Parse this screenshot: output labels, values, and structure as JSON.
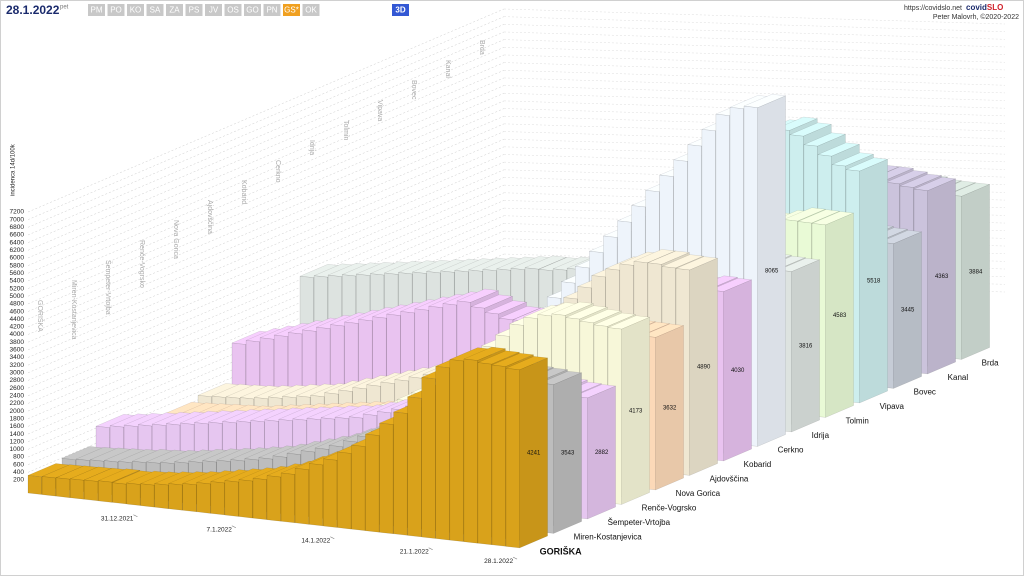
{
  "header": {
    "date": "28.1.2022",
    "weekday": "pet",
    "buttons": [
      "PM",
      "PO",
      "KO",
      "SA",
      "ZA",
      "PS",
      "JV",
      "OS",
      "GO",
      "PN",
      "GS*",
      "OK"
    ],
    "active_button": "GS*",
    "mode": "3D",
    "site": "https://covidslo.net",
    "brand_a": "covid",
    "brand_b": "SLO",
    "author": "Peter Malovrh, ©2020-2022"
  },
  "chart_data": {
    "type": "bar3d",
    "ylabel": "incidenca 14d/100k",
    "ylim": [
      0,
      7200
    ],
    "yticks": [
      200,
      400,
      600,
      800,
      1000,
      1200,
      1400,
      1600,
      1800,
      2000,
      2200,
      2400,
      2600,
      2800,
      3000,
      3200,
      3400,
      3600,
      3800,
      4000,
      4200,
      4400,
      4600,
      4800,
      5000,
      5200,
      5400,
      5600,
      5800,
      6000,
      6200,
      6400,
      6600,
      6800,
      7000,
      7200
    ],
    "grid": true,
    "categories": [
      null,
      null,
      null,
      null,
      null,
      null,
      null,
      "31.12.2021",
      null,
      null,
      null,
      null,
      null,
      null,
      "7.1.2022",
      null,
      null,
      null,
      null,
      null,
      null,
      "14.1.2022",
      null,
      null,
      null,
      null,
      null,
      null,
      "21.1.2022",
      null,
      null,
      null,
      null,
      null,
      "28.1.2022"
    ],
    "series": [
      {
        "name": "GORIŠKA",
        "color": "#d9a21b",
        "values": [
          420,
          430,
          440,
          450,
          460,
          480,
          470,
          500,
          520,
          560,
          600,
          640,
          700,
          760,
          820,
          880,
          950,
          1050,
          1150,
          1300,
          1450,
          1600,
          1800,
          2000,
          2300,
          2600,
          2900,
          3300,
          3800,
          4100,
          4300,
          4350,
          4300,
          4280,
          4241
        ]
      },
      {
        "name": "Miren-Kostanjevica",
        "color": "#bdbdbd",
        "values": [
          480,
          500,
          520,
          540,
          560,
          600,
          620,
          650,
          700,
          750,
          800,
          850,
          900,
          960,
          1020,
          1100,
          1200,
          1300,
          1400,
          1500,
          1650,
          1800,
          1950,
          2100,
          2300,
          2500,
          2700,
          2900,
          3100,
          3300,
          3450,
          3550,
          3600,
          3580,
          3543
        ]
      },
      {
        "name": "Šempeter-Vrtojba",
        "color": "#e6c6f0",
        "values": [
          900,
          950,
          1000,
          1050,
          1100,
          1150,
          1200,
          1250,
          1300,
          1350,
          1400,
          1450,
          1500,
          1550,
          1600,
          1650,
          1700,
          1750,
          1800,
          1900,
          2000,
          2100,
          2200,
          2300,
          2400,
          2500,
          2600,
          2700,
          2800,
          2900,
          2950,
          3000,
          2950,
          2900,
          2882
        ]
      },
      {
        "name": "Renče-Vogrsko",
        "color": "#f7f7d9",
        "values": [
          300,
          300,
          350,
          350,
          400,
          450,
          500,
          550,
          600,
          700,
          800,
          900,
          1000,
          1100,
          1200,
          1300,
          1400,
          1500,
          1700,
          1900,
          2100,
          2300,
          2500,
          2800,
          3100,
          3400,
          3700,
          4000,
          4200,
          4300,
          4350,
          4300,
          4250,
          4200,
          4173
        ]
      },
      {
        "name": "Nova Gorica",
        "color": "#fcd9b8",
        "values": [
          500,
          520,
          540,
          560,
          580,
          600,
          650,
          700,
          750,
          800,
          850,
          900,
          950,
          1000,
          1050,
          1100,
          1200,
          1300,
          1400,
          1500,
          1600,
          1700,
          1900,
          2100,
          2300,
          2500,
          2700,
          2900,
          3100,
          3300,
          3500,
          3600,
          3650,
          3640,
          3632
        ]
      },
      {
        "name": "Ajdovščina",
        "color": "#efe7d2",
        "values": [
          600,
          620,
          640,
          660,
          700,
          750,
          800,
          850,
          900,
          1000,
          1100,
          1200,
          1300,
          1400,
          1500,
          1600,
          1700,
          1800,
          2000,
          2200,
          2400,
          2600,
          2800,
          3000,
          3300,
          3600,
          3900,
          4200,
          4500,
          4700,
          4850,
          4950,
          4950,
          4900,
          4890
        ]
      },
      {
        "name": "Kobarid",
        "color": "#e9c3f0",
        "values": [
          1500,
          1600,
          1700,
          1800,
          1900,
          2000,
          2100,
          2200,
          2300,
          2400,
          2500,
          2600,
          2700,
          2800,
          2900,
          3000,
          3100,
          3000,
          2900,
          2800,
          2800,
          2900,
          3000,
          3100,
          3200,
          3300,
          3400,
          3500,
          3600,
          3700,
          3800,
          3900,
          4000,
          4050,
          4030
        ]
      },
      {
        "name": "Cerkno",
        "color": "#eef4fb",
        "values": [
          400,
          400,
          450,
          500,
          500,
          550,
          600,
          650,
          700,
          800,
          900,
          1000,
          1100,
          1200,
          1400,
          1600,
          1800,
          2000,
          2300,
          2600,
          3000,
          3400,
          3800,
          4200,
          4600,
          5000,
          5400,
          5800,
          6200,
          6600,
          7000,
          7400,
          7800,
          8000,
          8065
        ]
      },
      {
        "name": "Idrija",
        "color": "#dde3e0",
        "values": [
          2400,
          2450,
          2500,
          2550,
          2600,
          2650,
          2700,
          2750,
          2800,
          2850,
          2900,
          2950,
          3000,
          3050,
          3100,
          3150,
          3200,
          3200,
          3250,
          3300,
          3300,
          3350,
          3400,
          3450,
          3500,
          3500,
          3550,
          3600,
          3650,
          3700,
          3750,
          3800,
          3850,
          3830,
          3816
        ]
      },
      {
        "name": "Tolmin",
        "color": "#e9fad6",
        "values": [
          600,
          650,
          700,
          750,
          800,
          850,
          900,
          950,
          1000,
          1100,
          1200,
          1300,
          1400,
          1500,
          1600,
          1700,
          1800,
          1900,
          2000,
          2200,
          2400,
          2600,
          2800,
          3000,
          3200,
          3400,
          3600,
          3800,
          4000,
          4200,
          4400,
          4500,
          4600,
          4590,
          4583
        ]
      },
      {
        "name": "Vipava",
        "color": "#cdeeee",
        "values": [
          800,
          850,
          900,
          950,
          1000,
          1100,
          1200,
          1300,
          1400,
          1500,
          1600,
          1800,
          2000,
          2200,
          2400,
          2600,
          2800,
          3000,
          3300,
          3600,
          3900,
          4200,
          4500,
          4800,
          5100,
          5400,
          5700,
          6000,
          6200,
          6300,
          6200,
          6000,
          5800,
          5600,
          5518
        ]
      },
      {
        "name": "Bovec",
        "color": "#c6ccd6",
        "values": [
          300,
          300,
          350,
          350,
          400,
          400,
          450,
          500,
          550,
          600,
          700,
          800,
          900,
          1000,
          1100,
          1200,
          1300,
          1400,
          1600,
          1800,
          2000,
          2200,
          2400,
          2600,
          2800,
          3000,
          3200,
          3400,
          3600,
          3700,
          3650,
          3600,
          3500,
          3470,
          3445
        ]
      },
      {
        "name": "Kanal",
        "color": "#cbc3dc",
        "values": [
          500,
          550,
          600,
          650,
          700,
          750,
          800,
          850,
          900,
          1000,
          1100,
          1200,
          1300,
          1400,
          1500,
          1600,
          1800,
          2000,
          2200,
          2400,
          2600,
          2800,
          3000,
          3200,
          3400,
          3600,
          3800,
          4000,
          4200,
          4400,
          4500,
          4500,
          4450,
          4400,
          4363
        ]
      },
      {
        "name": "Brda",
        "color": "#d3e0d8",
        "values": [
          200,
          200,
          250,
          250,
          300,
          300,
          350,
          400,
          450,
          500,
          600,
          700,
          800,
          900,
          1000,
          1100,
          1300,
          1500,
          1700,
          1900,
          2100,
          2300,
          2500,
          2700,
          2900,
          3100,
          3300,
          3500,
          3700,
          3800,
          3900,
          3950,
          3900,
          3890,
          3884
        ]
      }
    ]
  }
}
